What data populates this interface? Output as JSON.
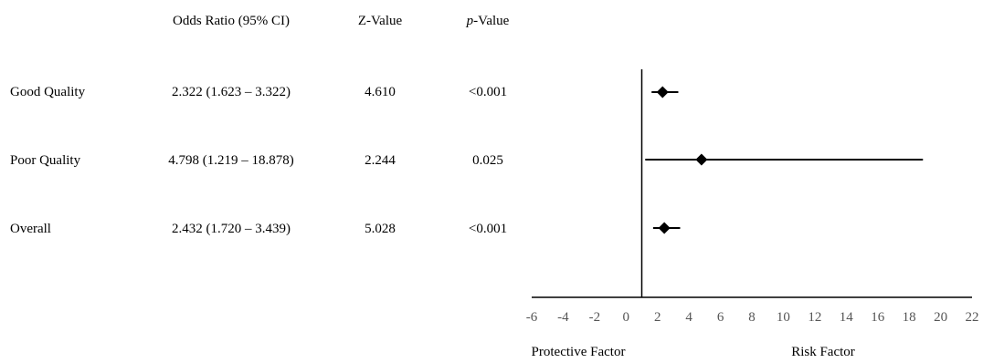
{
  "header": {
    "or_label": "Odds Ratio (95% CI)",
    "z_label": "Z-Value",
    "p_label_italic": "p",
    "p_label_rest": "-Value"
  },
  "rows": [
    {
      "label": "Good Quality",
      "or_text": "2.322 (1.623 – 3.322)",
      "z": "4.610",
      "p": "<0.001"
    },
    {
      "label": "Poor Quality",
      "or_text": "4.798 (1.219 – 18.878)",
      "z": "2.244",
      "p": "0.025"
    },
    {
      "label": "Overall",
      "or_text": "2.432 (1.720 – 3.439)",
      "z": "5.028",
      "p": "<0.001"
    }
  ],
  "footer": {
    "left": "Protective Factor",
    "right": "Risk Factor"
  },
  "chart_data": {
    "type": "scatter",
    "subtype": "forest-plot",
    "title": "",
    "xlabel": "",
    "ylabel": "",
    "xlim": [
      -6,
      22
    ],
    "xticks": [
      -6,
      -4,
      -2,
      0,
      2,
      4,
      6,
      8,
      10,
      12,
      14,
      16,
      18,
      20,
      22
    ],
    "reference_line": 1,
    "categories": [
      "Good Quality",
      "Poor Quality",
      "Overall"
    ],
    "series": [
      {
        "points": [
          {
            "category": "Good Quality",
            "estimate": 2.322,
            "lower": 1.623,
            "upper": 3.322
          },
          {
            "category": "Poor Quality",
            "estimate": 4.798,
            "lower": 1.219,
            "upper": 18.878
          },
          {
            "category": "Overall",
            "estimate": 2.432,
            "lower": 1.72,
            "upper": 3.439
          }
        ]
      }
    ],
    "marker_color": "#000000",
    "grid": false
  }
}
